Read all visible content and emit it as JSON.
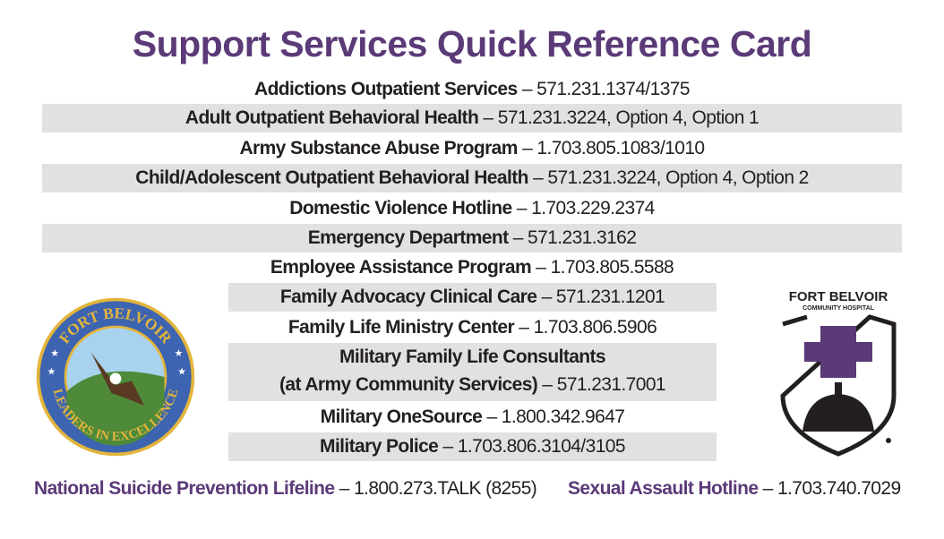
{
  "title": "Support Services Quick Reference Card",
  "rows": [
    {
      "name": "Addictions Outpatient Services",
      "phone": " – 571.231.1374/1375"
    },
    {
      "name": "Adult Outpatient Behavioral Health",
      "phone": " – 571.231.3224, Option 4, Option 1"
    },
    {
      "name": "Army Substance Abuse Program",
      "phone": " – 1.703.805.1083/1010"
    },
    {
      "name": "Child/Adolescent Outpatient Behavioral Health",
      "phone": " – 571.231.3224, Option 4, Option 2"
    },
    {
      "name": "Domestic Violence Hotline",
      "phone": " – 1.703.229.2374"
    },
    {
      "name": "Emergency Department",
      "phone": " – 571.231.3162"
    },
    {
      "name": "Employee Assistance Program",
      "phone": " – 1.703.805.5588"
    },
    {
      "name": "Family Advocacy Clinical Care",
      "phone": " – 571.231.1201"
    },
    {
      "name": "Family Life Ministry Center",
      "phone": " – 1.703.806.5906"
    },
    {
      "name": "Military Family Life Consultants",
      "name2": "(at Army Community Services)",
      "phone": " – 571.231.7001"
    },
    {
      "name": "Military OneSource",
      "phone": " – 1.800.342.9647"
    },
    {
      "name": "Military Police",
      "phone": " – 1.703.806.3104/3105"
    }
  ],
  "bottom": [
    {
      "name": "National Suicide Prevention Lifeline",
      "phone": " – 1.800.273.TALK (8255)"
    },
    {
      "name": "Sexual Assault Hotline",
      "phone": " – 1.703.740.7029"
    }
  ],
  "seal": {
    "top_text": "FORT BELVOIR",
    "bottom_text": "LEADERS IN EXCELLENCE"
  },
  "hospital_logo": {
    "line1": "FORT BELVOIR",
    "line2": "COMMUNITY HOSPITAL"
  },
  "colors": {
    "accent": "#5b3a78",
    "row_shade": "#e1e1e1"
  }
}
